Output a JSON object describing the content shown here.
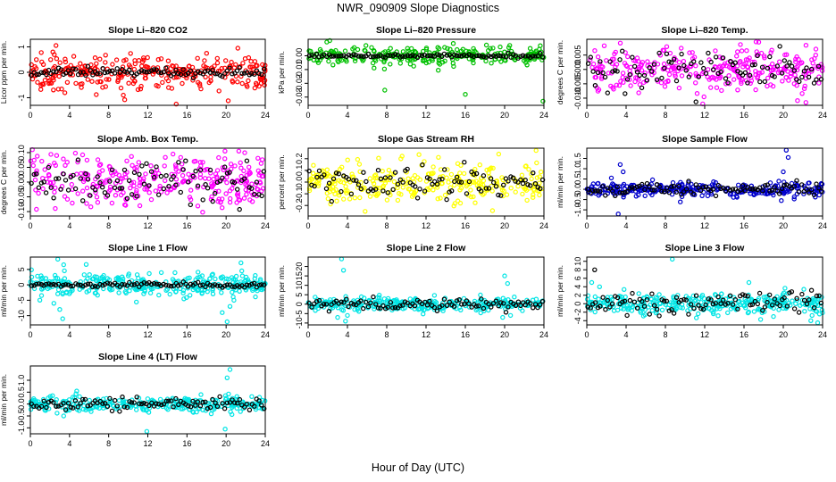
{
  "title": "NWR_090909  Slope Diagnostics",
  "x_axis_label": "Hour of Day (UTC)",
  "colors": {
    "frame": "#000000",
    "secondary_points": "#000000"
  },
  "chart_data": [
    {
      "type": "scatter",
      "title": "Slope Li–820 CO2",
      "ylabel": "Licor ppm per min.",
      "xlim": [
        0,
        24
      ],
      "x_ticks": [
        "0",
        "4",
        "8",
        "12",
        "16",
        "20",
        "24"
      ],
      "ylim": [
        -1.3,
        1.3
      ],
      "y_ticks": [
        1,
        0,
        -1
      ],
      "y_tick_labels": [
        "1",
        "0",
        "-1"
      ],
      "color": "#ff0000",
      "series": [
        {
          "name": "main",
          "color": "#ff0000",
          "spread": 0.32,
          "count": 300,
          "outliers": [
            [
              2.3,
              0.8
            ],
            [
              9.5,
              -0.9
            ],
            [
              14.9,
              -1.25
            ],
            [
              21.2,
              0.95
            ],
            [
              18.0,
              0.75
            ]
          ]
        },
        {
          "name": "hourly",
          "color": "#000000",
          "spread": 0.08,
          "count": 96
        }
      ]
    },
    {
      "type": "scatter",
      "title": "Slope Li–820 Pressure",
      "ylabel": "kPa per min.",
      "xlim": [
        0,
        24
      ],
      "x_ticks": [
        "0",
        "4",
        "8",
        "12",
        "16",
        "20",
        "24"
      ],
      "ylim": [
        -0.036,
        0.012
      ],
      "y_ticks": [
        0,
        -0.01,
        -0.02,
        -0.03
      ],
      "y_tick_labels": [
        "0.00",
        "-0.01",
        "-0.02",
        "-0.03"
      ],
      "color": "#00c000",
      "series": [
        {
          "name": "main",
          "color": "#00c000",
          "spread": 0.0035,
          "count": 260,
          "outliers": [
            [
              1.9,
              0.01
            ],
            [
              2.2,
              0.011
            ],
            [
              7.8,
              -0.025
            ],
            [
              16.0,
              -0.028
            ],
            [
              23.9,
              -0.033
            ],
            [
              10.4,
              -0.006
            ]
          ]
        },
        {
          "name": "hourly",
          "color": "#000000",
          "spread": 0.0008,
          "count": 96
        }
      ]
    },
    {
      "type": "scatter",
      "title": "Slope Li–820 Temp.",
      "ylabel": "degrees C per min.",
      "xlim": [
        0,
        24
      ],
      "x_ticks": [
        "0",
        "4",
        "8",
        "12",
        "16",
        "20",
        "24"
      ],
      "ylim": [
        -0.0125,
        0.0105
      ],
      "y_ticks": [
        0.005,
        0,
        -0.005,
        -0.01
      ],
      "y_tick_labels": [
        "0.005",
        "0.000",
        "-0.005",
        "-0.010"
      ],
      "color": "#ff00ff",
      "series": [
        {
          "name": "main",
          "color": "#ff00ff",
          "spread": 0.0038,
          "count": 300,
          "outliers": [
            [
              17.5,
              0.0095
            ],
            [
              22.3,
              -0.0115
            ],
            [
              11.8,
              -0.012
            ]
          ]
        },
        {
          "name": "hourly",
          "color": "#000000",
          "spread": 0.0032,
          "count": 96
        }
      ]
    },
    {
      "type": "scatter",
      "title": "Slope Amb. Box Temp.",
      "ylabel": "degrees C per min.",
      "xlim": [
        0,
        24
      ],
      "x_ticks": [
        "0",
        "4",
        "8",
        "12",
        "16",
        "20",
        "24"
      ],
      "ylim": [
        -0.115,
        0.115
      ],
      "y_ticks": [
        0.1,
        0.05,
        0,
        -0.05,
        -0.1
      ],
      "y_tick_labels": [
        "0.10",
        "0.05",
        "0.00",
        "-0.05",
        "-0.10"
      ],
      "color": "#ff00ff",
      "series": [
        {
          "name": "main",
          "color": "#ff00ff",
          "spread": 0.042,
          "count": 300,
          "outliers": [
            [
              0.2,
              0.11
            ],
            [
              21.3,
              0.105
            ],
            [
              17.6,
              -0.102
            ]
          ]
        },
        {
          "name": "hourly",
          "color": "#000000",
          "spread": 0.035,
          "count": 96
        }
      ]
    },
    {
      "type": "scatter",
      "title": "Slope Gas Stream RH",
      "ylabel": "percent per min.",
      "xlim": [
        0,
        24
      ],
      "x_ticks": [
        "0",
        "4",
        "8",
        "12",
        "16",
        "20",
        "24"
      ],
      "ylim": [
        -0.29,
        0.29
      ],
      "y_ticks": [
        0.2,
        0.1,
        0,
        -0.1,
        -0.2
      ],
      "y_tick_labels": [
        "0.2",
        "0.1",
        "0.0",
        "-0.1",
        "-0.2"
      ],
      "color": "#ffff00",
      "series": [
        {
          "name": "main",
          "color": "#ffff00",
          "spread": 0.085,
          "count": 300,
          "outliers": [
            [
              23.2,
              0.27
            ],
            [
              5.8,
              -0.25
            ],
            [
              19.4,
              0.24
            ]
          ]
        },
        {
          "name": "hourly",
          "color": "#000000",
          "spread": 0.07,
          "count": 96
        }
      ]
    },
    {
      "type": "scatter",
      "title": "Slope Sample Flow",
      "ylabel": "ml/min per min.",
      "xlim": [
        0,
        24
      ],
      "x_ticks": [
        "0",
        "4",
        "8",
        "12",
        "16",
        "20",
        "24"
      ],
      "ylim": [
        -1.3,
        2.0
      ],
      "y_ticks": [
        1.5,
        1,
        0.5,
        0,
        -0.5,
        -1
      ],
      "y_tick_labels": [
        "1.5",
        "1.0",
        "0.5",
        "0.0",
        "-0.5",
        "-1.0"
      ],
      "color": "#0000cc",
      "series": [
        {
          "name": "main",
          "color": "#0000cc",
          "spread": 0.17,
          "count": 300,
          "outliers": [
            [
              3.4,
              1.2
            ],
            [
              3.7,
              0.85
            ],
            [
              3.2,
              -1.2
            ],
            [
              2.5,
              0.55
            ],
            [
              20.3,
              1.9
            ],
            [
              20.5,
              1.55
            ],
            [
              20.0,
              0.85
            ],
            [
              19.8,
              -0.55
            ]
          ]
        },
        {
          "name": "hourly",
          "color": "#000000",
          "spread": 0.15,
          "count": 96
        }
      ]
    },
    {
      "type": "scatter",
      "title": "Slope Line 1 Flow",
      "ylabel": "ml/min per min.",
      "xlim": [
        0,
        24
      ],
      "x_ticks": [
        "0",
        "4",
        "8",
        "12",
        "16",
        "20",
        "24"
      ],
      "ylim": [
        -13,
        9
      ],
      "y_ticks": [
        5,
        0,
        -5,
        -10
      ],
      "y_tick_labels": [
        "5",
        "0",
        "-5",
        "-10"
      ],
      "color": "#00e5e5",
      "series": [
        {
          "name": "main",
          "color": "#00e5e5",
          "spread": 1.8,
          "count": 320,
          "outliers": [
            [
              2.8,
              8.3
            ],
            [
              3.4,
              6.5
            ],
            [
              3.0,
              -8
            ],
            [
              3.3,
              -11
            ],
            [
              2.4,
              -6
            ],
            [
              20.1,
              -12
            ],
            [
              19.6,
              -9
            ],
            [
              20.4,
              -7
            ],
            [
              20.8,
              -5
            ]
          ]
        },
        {
          "name": "hourly",
          "color": "#000000",
          "spread": 0.35,
          "count": 96
        }
      ]
    },
    {
      "type": "scatter",
      "title": "Slope Line 2 Flow",
      "ylabel": "ml/min per min.",
      "xlim": [
        0,
        24
      ],
      "x_ticks": [
        "0",
        "4",
        "8",
        "12",
        "16",
        "20",
        "24"
      ],
      "ylim": [
        -11,
        25
      ],
      "y_ticks": [
        20,
        15,
        10,
        5,
        0,
        -5,
        -10
      ],
      "y_tick_labels": [
        "20",
        "15",
        "10",
        "5",
        "0",
        "-5",
        "-10"
      ],
      "color": "#00e5e5",
      "series": [
        {
          "name": "main",
          "color": "#00e5e5",
          "spread": 1.7,
          "count": 300,
          "outliers": [
            [
              3.4,
              24
            ],
            [
              3.6,
              18
            ],
            [
              3.0,
              -7
            ],
            [
              3.8,
              -9
            ],
            [
              4.0,
              -6
            ],
            [
              20.0,
              15
            ],
            [
              20.3,
              11
            ],
            [
              20.6,
              -6
            ],
            [
              19.8,
              -7
            ]
          ]
        },
        {
          "name": "hourly",
          "color": "#000000",
          "spread": 1.3,
          "count": 96
        }
      ]
    },
    {
      "type": "scatter",
      "title": "Slope Line 3 Flow",
      "ylabel": "ml/min per min.",
      "xlim": [
        0,
        24
      ],
      "x_ticks": [
        "0",
        "4",
        "8",
        "12",
        "16",
        "20",
        "24"
      ],
      "ylim": [
        -5,
        11
      ],
      "y_ticks": [
        10,
        8,
        6,
        4,
        2,
        0,
        -2,
        -4
      ],
      "y_tick_labels": [
        "10",
        "8",
        "6",
        "4",
        "2",
        "0",
        "-2",
        "-4"
      ],
      "color": "#00e5e5",
      "series": [
        {
          "name": "main",
          "color": "#00e5e5",
          "spread": 1.2,
          "count": 320,
          "outliers": [
            [
              8.7,
              10.5
            ],
            [
              0.5,
              5
            ],
            [
              1.3,
              4
            ],
            [
              16.5,
              5
            ],
            [
              22.8,
              -4
            ],
            [
              23.5,
              -4.5
            ]
          ]
        },
        {
          "name": "hourly",
          "color": "#000000",
          "spread": 1.5,
          "count": 96,
          "outliers": [
            [
              0.8,
              8
            ]
          ]
        }
      ]
    },
    {
      "type": "scatter",
      "title": "Slope Line 4 (LT) Flow",
      "ylabel": "ml/min per min.",
      "xlim": [
        0,
        24
      ],
      "x_ticks": [
        "0",
        "4",
        "8",
        "12",
        "16",
        "20",
        "24"
      ],
      "ylim": [
        -1.25,
        1.6
      ],
      "y_ticks": [
        1,
        0.5,
        0,
        -0.5,
        -1
      ],
      "y_tick_labels": [
        "1.0",
        "0.5",
        "0.0",
        "-0.5",
        "-1.0"
      ],
      "color": "#00e5e5",
      "series": [
        {
          "name": "main",
          "color": "#00e5e5",
          "spread": 0.16,
          "count": 300,
          "outliers": [
            [
              20.4,
              1.45
            ],
            [
              20.1,
              1.1
            ],
            [
              11.9,
              -1.15
            ],
            [
              19.9,
              -1.05
            ],
            [
              3.4,
              -0.5
            ]
          ]
        },
        {
          "name": "hourly",
          "color": "#000000",
          "spread": 0.13,
          "count": 96
        }
      ]
    }
  ]
}
